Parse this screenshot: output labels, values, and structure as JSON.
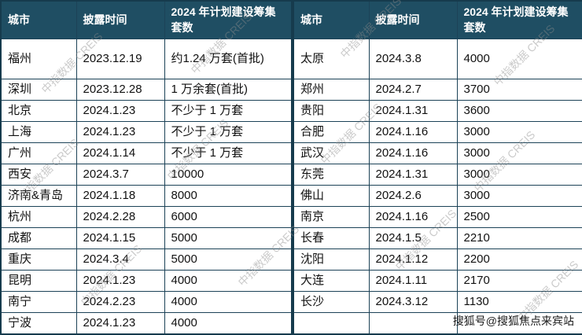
{
  "chart_data": {
    "type": "table",
    "columns": [
      "城市",
      "披露时间",
      "2024 年计划建设筹集套数"
    ],
    "left_rows": [
      [
        "福州",
        "2023.12.19",
        "约1.24 万套(首批)"
      ],
      [
        "深圳",
        "2023.12.28",
        "1 万余套(首批)"
      ],
      [
        "北京",
        "2024.1.23",
        "不少于 1 万套"
      ],
      [
        "上海",
        "2024.1.23",
        "不少于 1 万套"
      ],
      [
        "广州",
        "2024.1.14",
        "不少于 1 万套"
      ],
      [
        "西安",
        "2024.3.7",
        "10000"
      ],
      [
        "济南&青岛",
        "2024.1.18",
        "8000"
      ],
      [
        "杭州",
        "2024.2.28",
        "6000"
      ],
      [
        "成都",
        "2024.1.15",
        "5000"
      ],
      [
        "重庆",
        "2024.3.4",
        "5000"
      ],
      [
        "昆明",
        "2024.1.23",
        "4000"
      ],
      [
        "南宁",
        "2024.2.23",
        "4000"
      ],
      [
        "宁波",
        "2024.1.23",
        "4000"
      ]
    ],
    "right_rows": [
      [
        "太原",
        "2024.3.8",
        "4000"
      ],
      [
        "郑州",
        "2024.2.7",
        "3700"
      ],
      [
        "贵阳",
        "2024.1.31",
        "3600"
      ],
      [
        "合肥",
        "2024.1.16",
        "3000"
      ],
      [
        "武汉",
        "2024.1.16",
        "3000"
      ],
      [
        "东莞",
        "2024.1.31",
        "3000"
      ],
      [
        "佛山",
        "2024.2.6",
        "3000"
      ],
      [
        "南京",
        "2024.1.16",
        "2500"
      ],
      [
        "长春",
        "2024.1.5",
        "2210"
      ],
      [
        "沈阳",
        "2024.1.12",
        "2200"
      ],
      [
        "大连",
        "2024.1.11",
        "2170"
      ],
      [
        "长沙",
        "2024.3.12",
        "1130"
      ],
      [
        "",
        "",
        ""
      ]
    ]
  },
  "colors": {
    "header_bg": "#1f4e63",
    "header_text": "#ffffff",
    "border": "#1c4257"
  },
  "watermark": {
    "text": "中指数据 CREIS"
  },
  "footer": {
    "credit": "搜狐号@搜狐焦点来宾站"
  }
}
